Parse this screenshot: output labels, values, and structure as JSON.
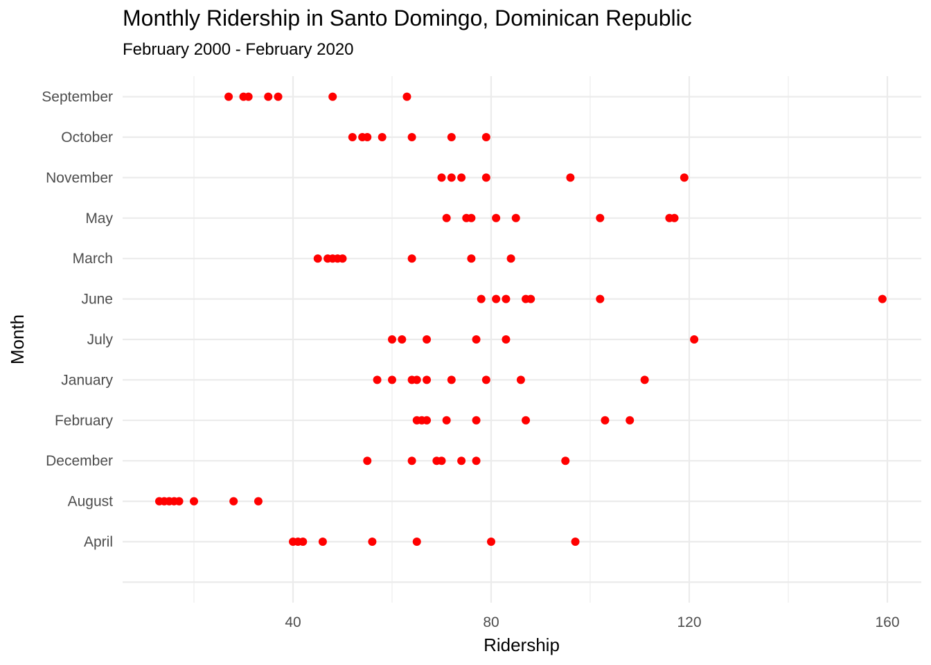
{
  "chart_data": {
    "type": "scatter",
    "title": "Monthly Ridership in Santo Domingo, Dominican Republic",
    "subtitle": "February 2000 - February 2020",
    "xlabel": "Ridership",
    "ylabel": "Month",
    "xlim": [
      6,
      166
    ],
    "x_ticks": [
      40,
      80,
      120,
      160
    ],
    "grid": true,
    "point_color": "#ff0000",
    "categories": [
      "April",
      "August",
      "December",
      "February",
      "January",
      "July",
      "June",
      "March",
      "May",
      "November",
      "October",
      "September"
    ],
    "series": [
      {
        "category": "April",
        "values": [
          40,
          41,
          42,
          46,
          56,
          65,
          80,
          97
        ]
      },
      {
        "category": "August",
        "values": [
          13,
          14,
          15,
          16,
          17,
          20,
          28,
          33
        ]
      },
      {
        "category": "December",
        "values": [
          55,
          64,
          69,
          70,
          74,
          77,
          95
        ]
      },
      {
        "category": "February",
        "values": [
          65,
          66,
          67,
          71,
          77,
          87,
          103,
          108
        ]
      },
      {
        "category": "January",
        "values": [
          57,
          60,
          64,
          65,
          67,
          72,
          79,
          86,
          111
        ]
      },
      {
        "category": "July",
        "values": [
          60,
          62,
          67,
          77,
          83,
          121
        ]
      },
      {
        "category": "June",
        "values": [
          78,
          81,
          83,
          87,
          88,
          102,
          159
        ]
      },
      {
        "category": "March",
        "values": [
          45,
          47,
          48,
          49,
          50,
          64,
          76,
          84
        ]
      },
      {
        "category": "May",
        "values": [
          71,
          75,
          76,
          81,
          85,
          102,
          116,
          117
        ]
      },
      {
        "category": "November",
        "values": [
          70,
          72,
          74,
          79,
          96,
          119
        ]
      },
      {
        "category": "October",
        "values": [
          52,
          54,
          55,
          58,
          64,
          72,
          79
        ]
      },
      {
        "category": "September",
        "values": [
          27,
          30,
          31,
          35,
          37,
          48,
          63
        ]
      }
    ]
  }
}
